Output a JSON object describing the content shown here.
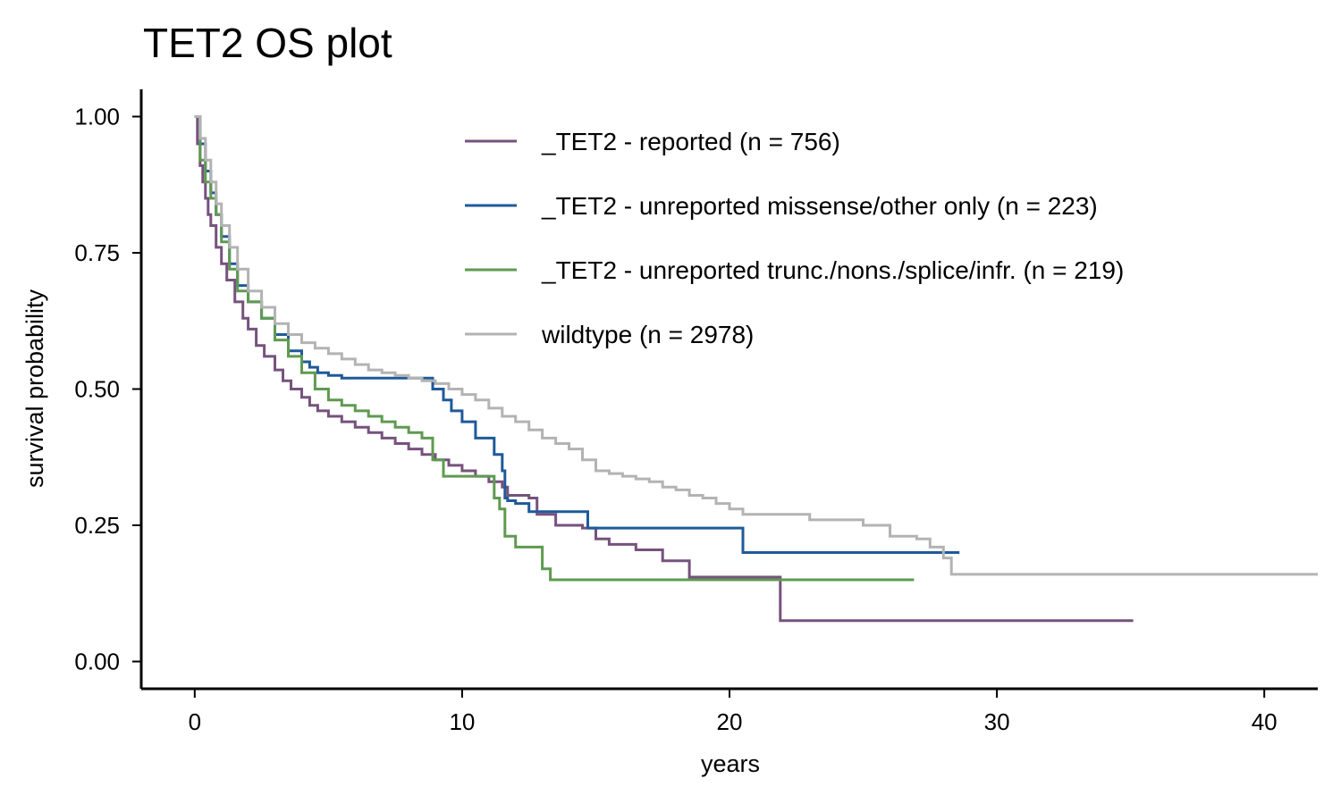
{
  "chart_data": {
    "type": "line",
    "title": "TET2 OS plot",
    "xlabel": "years",
    "ylabel": "survival probability",
    "xlim": [
      -2,
      42
    ],
    "ylim": [
      -0.05,
      1.05
    ],
    "x_ticks": [
      0,
      10,
      20,
      30,
      40
    ],
    "x_tick_labels": [
      "0",
      "10",
      "20",
      "30",
      "40"
    ],
    "y_ticks": [
      0,
      0.25,
      0.5,
      0.75,
      1
    ],
    "y_tick_labels": [
      "0.00",
      "0.25",
      "0.50",
      "0.75",
      "1.00"
    ],
    "grid": false,
    "legend_position": "top-right",
    "series": [
      {
        "name": "_TET2 - reported (n = 756)",
        "color": "#76527d",
        "x": [
          0,
          0.1,
          0.2,
          0.3,
          0.4,
          0.5,
          0.6,
          0.8,
          1.0,
          1.2,
          1.5,
          1.8,
          2.0,
          2.3,
          2.6,
          3.0,
          3.3,
          3.6,
          4.0,
          4.3,
          4.6,
          5.0,
          5.5,
          6.0,
          6.5,
          7.0,
          7.5,
          8.0,
          8.5,
          9.0,
          9.5,
          10.0,
          10.5,
          11.0,
          11.5,
          11.7,
          12.5,
          12.8,
          13.5,
          14.5,
          15.0,
          15.5,
          16.5,
          17.5,
          18.5,
          20.5,
          21.9,
          35.1
        ],
        "y": [
          1.0,
          0.95,
          0.91,
          0.88,
          0.85,
          0.82,
          0.8,
          0.76,
          0.73,
          0.7,
          0.66,
          0.63,
          0.61,
          0.58,
          0.56,
          0.535,
          0.515,
          0.5,
          0.485,
          0.47,
          0.46,
          0.45,
          0.44,
          0.43,
          0.42,
          0.41,
          0.4,
          0.39,
          0.38,
          0.37,
          0.36,
          0.35,
          0.34,
          0.33,
          0.32,
          0.305,
          0.3,
          0.27,
          0.25,
          0.245,
          0.225,
          0.215,
          0.205,
          0.185,
          0.155,
          0.155,
          0.075,
          0.075
        ]
      },
      {
        "name": "_TET2 - unreported missense/other only (n = 223)",
        "color": "#1f5a99",
        "x": [
          0,
          0.2,
          0.4,
          0.6,
          0.8,
          1.0,
          1.3,
          1.6,
          2.0,
          2.5,
          3.0,
          3.5,
          4.0,
          4.3,
          4.6,
          5.0,
          5.5,
          8.9,
          9.3,
          9.6,
          10.0,
          10.5,
          11.2,
          11.5,
          11.6,
          11.7,
          12.0,
          12.5,
          13.0,
          14.7,
          15.0,
          20.5,
          28.6
        ],
        "y": [
          1.0,
          0.95,
          0.9,
          0.86,
          0.82,
          0.78,
          0.73,
          0.69,
          0.66,
          0.63,
          0.6,
          0.57,
          0.55,
          0.54,
          0.53,
          0.525,
          0.52,
          0.5,
          0.48,
          0.46,
          0.44,
          0.41,
          0.38,
          0.35,
          0.3,
          0.295,
          0.29,
          0.275,
          0.275,
          0.245,
          0.245,
          0.2,
          0.2
        ]
      },
      {
        "name": "_TET2 - unreported trunc./nons./splice/infr. (n = 219)",
        "color": "#5f9a50",
        "x": [
          0,
          0.2,
          0.4,
          0.6,
          0.8,
          1.0,
          1.3,
          1.6,
          2.0,
          2.5,
          3.0,
          3.5,
          4.0,
          4.5,
          5.0,
          5.5,
          6.0,
          6.5,
          7.0,
          7.5,
          8.0,
          8.5,
          8.9,
          9.3,
          11.2,
          11.4,
          11.6,
          12.0,
          13.0,
          13.3,
          26.9
        ],
        "y": [
          1.0,
          0.92,
          0.88,
          0.85,
          0.82,
          0.77,
          0.72,
          0.68,
          0.66,
          0.63,
          0.59,
          0.56,
          0.53,
          0.5,
          0.48,
          0.47,
          0.46,
          0.45,
          0.44,
          0.43,
          0.42,
          0.41,
          0.37,
          0.34,
          0.3,
          0.28,
          0.23,
          0.21,
          0.17,
          0.15,
          0.15
        ]
      },
      {
        "name": "wildtype (n = 2978)",
        "color": "#b3b3b3",
        "x": [
          0,
          0.2,
          0.4,
          0.6,
          0.8,
          1.0,
          1.3,
          1.6,
          2.0,
          2.5,
          3.0,
          3.5,
          4.0,
          4.5,
          5.0,
          5.5,
          6.0,
          6.5,
          7.0,
          7.5,
          8.0,
          8.5,
          9.0,
          9.5,
          10.0,
          10.5,
          11.0,
          11.5,
          12.0,
          12.5,
          13.0,
          13.5,
          14.0,
          14.5,
          15.0,
          15.5,
          16.0,
          16.5,
          17.0,
          17.5,
          18.0,
          18.5,
          19.0,
          19.5,
          20.0,
          20.5,
          22.0,
          23.0,
          25.0,
          26.0,
          27.0,
          27.5,
          28.0,
          28.3,
          42.0
        ],
        "y": [
          1.0,
          0.96,
          0.92,
          0.88,
          0.84,
          0.8,
          0.76,
          0.72,
          0.68,
          0.65,
          0.62,
          0.6,
          0.585,
          0.575,
          0.565,
          0.555,
          0.545,
          0.535,
          0.53,
          0.525,
          0.52,
          0.515,
          0.51,
          0.5,
          0.49,
          0.48,
          0.465,
          0.45,
          0.44,
          0.425,
          0.41,
          0.4,
          0.39,
          0.37,
          0.35,
          0.345,
          0.34,
          0.335,
          0.33,
          0.32,
          0.315,
          0.305,
          0.3,
          0.29,
          0.28,
          0.27,
          0.27,
          0.26,
          0.25,
          0.23,
          0.225,
          0.21,
          0.19,
          0.16,
          0.16
        ]
      }
    ]
  }
}
